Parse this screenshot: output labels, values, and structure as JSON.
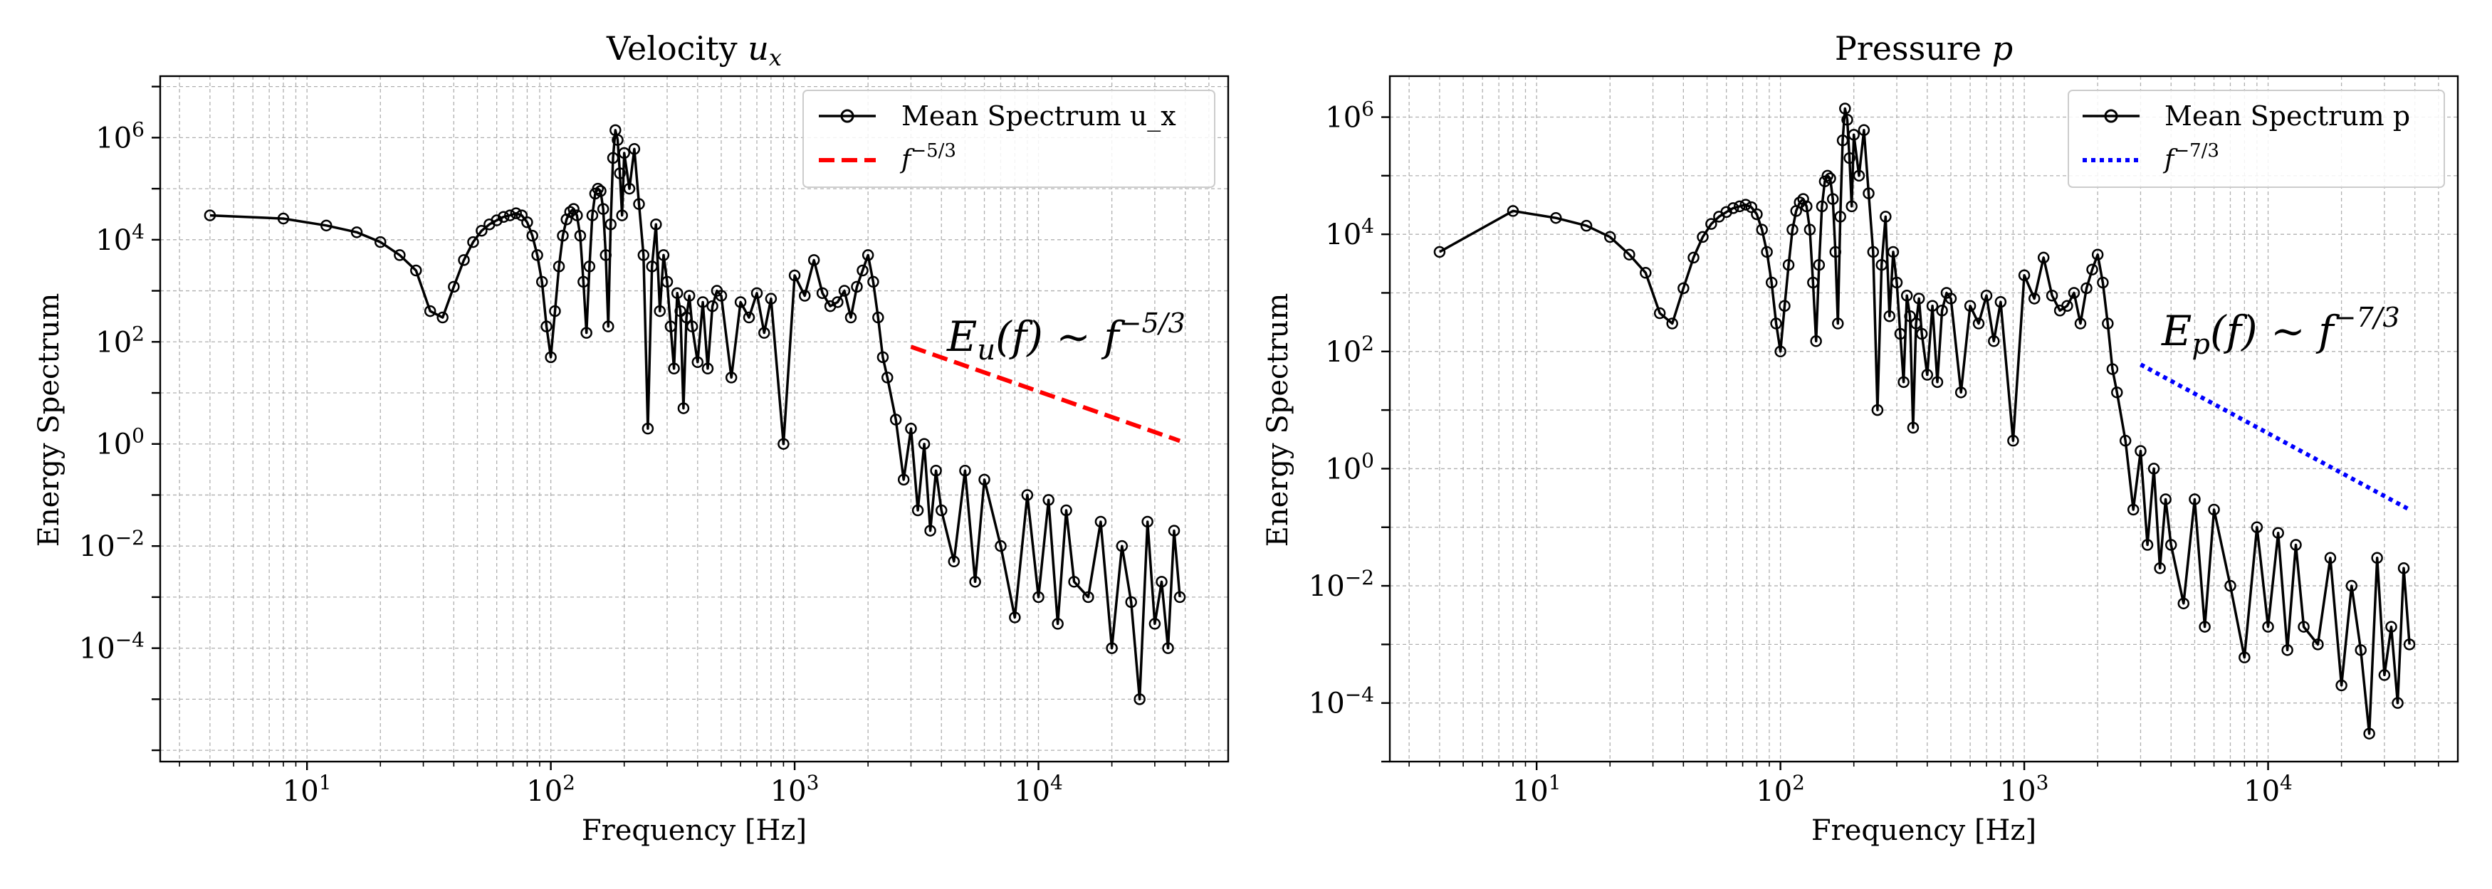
{
  "figure": {
    "background": "#ffffff",
    "grid_color": "#b0b0b0"
  },
  "chart_data": [
    {
      "type": "line",
      "xscale": "log",
      "yscale": "log",
      "title": "Velocity",
      "title_math": "u",
      "title_math_sub": "x",
      "xlabel": "Frequency [Hz]",
      "ylabel": "Energy Spectrum",
      "xlim": [
        2.5,
        60000
      ],
      "ylim": [
        6e-07,
        16000000.0
      ],
      "xticks": [
        {
          "value": 10,
          "base": "10",
          "exp": "1"
        },
        {
          "value": 100,
          "base": "10",
          "exp": "2"
        },
        {
          "value": 1000,
          "base": "10",
          "exp": "3"
        },
        {
          "value": 10000,
          "base": "10",
          "exp": "4"
        }
      ],
      "yticks": [
        {
          "value": 0.0001,
          "base": "10",
          "exp": "−4"
        },
        {
          "value": 0.01,
          "base": "10",
          "exp": "−2"
        },
        {
          "value": 1,
          "base": "10",
          "exp": "0"
        },
        {
          "value": 100,
          "base": "10",
          "exp": "2"
        },
        {
          "value": 10000,
          "base": "10",
          "exp": "4"
        },
        {
          "value": 1000000,
          "base": "10",
          "exp": "6"
        }
      ],
      "grid": true,
      "legend": "upper-right",
      "series": [
        {
          "name": "Mean Spectrum u_x",
          "color": "#000000",
          "style": "solid-circle-markers",
          "x": [
            4,
            8,
            12,
            16,
            20,
            24,
            28,
            32,
            36,
            40,
            44,
            48,
            52,
            56,
            60,
            64,
            68,
            72,
            76,
            80,
            84,
            88,
            92,
            96,
            100,
            104,
            108,
            112,
            116,
            120,
            124,
            128,
            132,
            136,
            140,
            144,
            148,
            152,
            156,
            160,
            164,
            168,
            172,
            176,
            180,
            184,
            188,
            192,
            196,
            200,
            210,
            220,
            230,
            240,
            250,
            260,
            270,
            280,
            290,
            300,
            310,
            320,
            330,
            340,
            350,
            360,
            370,
            380,
            400,
            420,
            440,
            460,
            480,
            500,
            550,
            600,
            650,
            700,
            750,
            800,
            900,
            1000,
            1100,
            1200,
            1300,
            1400,
            1500,
            1600,
            1700,
            1800,
            1900,
            2000,
            2100,
            2200,
            2300,
            2400,
            2600,
            2800,
            3000,
            3200,
            3400,
            3600,
            3800,
            4000,
            4500,
            5000,
            5500,
            6000,
            7000,
            8000,
            9000,
            10000,
            11000,
            12000,
            13000,
            14000,
            16000,
            18000,
            20000,
            22000,
            24000,
            26000,
            28000,
            30000,
            32000,
            34000,
            36000,
            38000
          ],
          "y": [
            30000,
            26000,
            19000,
            14000,
            9000,
            5000,
            2500,
            400,
            300,
            1200,
            4000,
            9000,
            15000,
            20000,
            24000,
            28000,
            30000,
            33000,
            30000,
            22000,
            12000,
            5000,
            1500,
            200,
            50,
            400,
            3000,
            12000,
            25000,
            35000,
            40000,
            30000,
            12000,
            1500,
            150,
            3000,
            30000,
            80000,
            100000,
            90000,
            40000,
            5000,
            200,
            20000,
            400000,
            1400000,
            900000,
            200000,
            30000,
            500000,
            100000,
            600000,
            50000,
            5000,
            2,
            3000,
            20000,
            400,
            5000,
            1500,
            200,
            30,
            900,
            400,
            5,
            300,
            800,
            200,
            40,
            600,
            30,
            500,
            1000,
            800,
            20,
            600,
            300,
            900,
            150,
            700,
            1,
            2000,
            800,
            4000,
            900,
            500,
            600,
            1000,
            300,
            1200,
            2500,
            5000,
            1500,
            300,
            50,
            20,
            3,
            0.2,
            2,
            0.05,
            1,
            0.02,
            0.3,
            0.05,
            0.005,
            0.3,
            0.002,
            0.2,
            0.01,
            0.0004,
            0.1,
            0.001,
            0.08,
            0.0003,
            0.05,
            0.002,
            0.001,
            0.03,
            0.0001,
            0.01,
            0.0008,
            1e-05,
            0.03,
            0.0003,
            0.002,
            0.0001,
            0.02,
            0.001
          ]
        },
        {
          "name": "f",
          "name_exp": "−5/3",
          "color": "#ff0000",
          "style": "dashed",
          "x": [
            3000,
            38000
          ],
          "y": [
            80,
            1.15
          ]
        }
      ],
      "annotation": {
        "text": "E",
        "sub": "u",
        "mid": "(f) ∼ f",
        "exp": "−5/3",
        "color": "#0000ff"
      }
    },
    {
      "type": "line",
      "xscale": "log",
      "yscale": "log",
      "title": "Pressure",
      "title_math": "p",
      "title_math_sub": "",
      "xlabel": "Frequency [Hz]",
      "ylabel": "Energy Spectrum",
      "xlim": [
        2.5,
        60000
      ],
      "ylim": [
        1e-05,
        5000000.0
      ],
      "xticks": [
        {
          "value": 10,
          "base": "10",
          "exp": "1"
        },
        {
          "value": 100,
          "base": "10",
          "exp": "2"
        },
        {
          "value": 1000,
          "base": "10",
          "exp": "3"
        },
        {
          "value": 10000,
          "base": "10",
          "exp": "4"
        }
      ],
      "yticks": [
        {
          "value": 0.0001,
          "base": "10",
          "exp": "−4"
        },
        {
          "value": 0.01,
          "base": "10",
          "exp": "−2"
        },
        {
          "value": 1,
          "base": "10",
          "exp": "0"
        },
        {
          "value": 100,
          "base": "10",
          "exp": "2"
        },
        {
          "value": 10000,
          "base": "10",
          "exp": "4"
        },
        {
          "value": 1000000,
          "base": "10",
          "exp": "6"
        }
      ],
      "grid": true,
      "legend": "upper-right",
      "series": [
        {
          "name": "Mean Spectrum p",
          "color": "#000000",
          "style": "solid-circle-markers",
          "x": [
            4,
            8,
            12,
            16,
            20,
            24,
            28,
            32,
            36,
            40,
            44,
            48,
            52,
            56,
            60,
            64,
            68,
            72,
            76,
            80,
            84,
            88,
            92,
            96,
            100,
            104,
            108,
            112,
            116,
            120,
            124,
            128,
            132,
            136,
            140,
            144,
            148,
            152,
            156,
            160,
            164,
            168,
            172,
            176,
            180,
            184,
            188,
            192,
            196,
            200,
            210,
            220,
            230,
            240,
            250,
            260,
            270,
            280,
            290,
            300,
            310,
            320,
            330,
            340,
            350,
            360,
            370,
            380,
            400,
            420,
            440,
            460,
            480,
            500,
            550,
            600,
            650,
            700,
            750,
            800,
            900,
            1000,
            1100,
            1200,
            1300,
            1400,
            1500,
            1600,
            1700,
            1800,
            1900,
            2000,
            2100,
            2200,
            2300,
            2400,
            2600,
            2800,
            3000,
            3200,
            3400,
            3600,
            3800,
            4000,
            4500,
            5000,
            5500,
            6000,
            7000,
            8000,
            9000,
            10000,
            11000,
            12000,
            13000,
            14000,
            16000,
            18000,
            20000,
            22000,
            24000,
            26000,
            28000,
            30000,
            32000,
            34000,
            36000,
            38000
          ],
          "y": [
            5000,
            25000,
            19000,
            14000,
            9000,
            4500,
            2200,
            450,
            300,
            1200,
            4000,
            9000,
            15000,
            20000,
            24000,
            28000,
            30000,
            32000,
            29000,
            22000,
            12000,
            5000,
            1500,
            300,
            100,
            600,
            3000,
            12000,
            25000,
            35000,
            40000,
            30000,
            12000,
            1500,
            150,
            3000,
            30000,
            80000,
            100000,
            90000,
            40000,
            5000,
            300,
            20000,
            400000,
            1400000,
            900000,
            200000,
            30000,
            500000,
            100000,
            600000,
            50000,
            5000,
            10,
            3000,
            20000,
            400,
            5000,
            1500,
            200,
            30,
            900,
            400,
            5,
            300,
            800,
            200,
            40,
            600,
            30,
            500,
            1000,
            800,
            20,
            600,
            300,
            900,
            150,
            700,
            3,
            2000,
            800,
            4000,
            900,
            500,
            600,
            1000,
            300,
            1200,
            2500,
            4500,
            1500,
            300,
            50,
            20,
            3,
            0.2,
            2,
            0.05,
            1,
            0.02,
            0.3,
            0.05,
            0.005,
            0.3,
            0.002,
            0.2,
            0.01,
            0.0006,
            0.1,
            0.002,
            0.08,
            0.0008,
            0.05,
            0.002,
            0.001,
            0.03,
            0.0002,
            0.01,
            0.0008,
            3e-05,
            0.03,
            0.0003,
            0.002,
            0.0001,
            0.02,
            0.001
          ]
        },
        {
          "name": "f",
          "name_exp": "−7/3",
          "color": "#0000ff",
          "style": "dotted",
          "x": [
            3000,
            38000
          ],
          "y": [
            60,
            0.2
          ]
        }
      ],
      "annotation": {
        "text": "E",
        "sub": "p",
        "mid": "(f) ∼ f",
        "exp": "−7/3",
        "color": "#0000ff"
      }
    }
  ]
}
